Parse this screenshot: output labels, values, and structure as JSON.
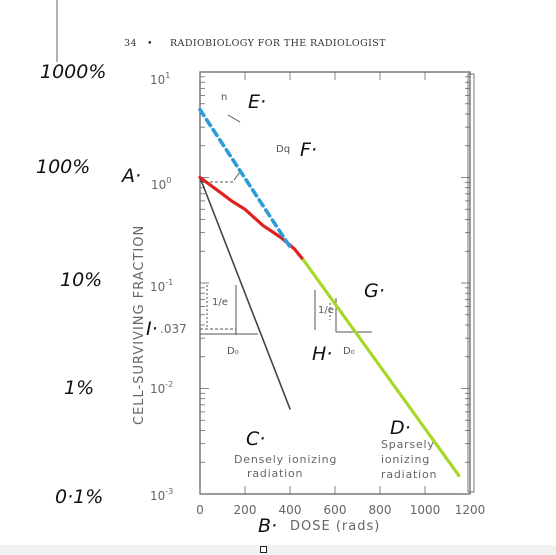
{
  "header": {
    "page_number": "34",
    "bullet": "•",
    "running_title": "RADIOBIOLOGY FOR THE RADIOLOGIST"
  },
  "chart_data": {
    "type": "line",
    "xlabel": "DOSE (rads)",
    "ylabel": "CELL-SURVIVING FRACTION",
    "xlim": [
      0,
      1200
    ],
    "ylim": [
      0.001,
      10
    ],
    "y_scale": "log",
    "x_ticks": [
      "0",
      "200",
      "400",
      "600",
      "800",
      "1000",
      "1200"
    ],
    "y_ticks": [
      {
        "base": "10",
        "exp": "1"
      },
      {
        "base": "10",
        "exp": "0"
      },
      {
        "base": "10",
        "exp": "-1"
      },
      {
        "base": "10",
        "exp": "-2"
      },
      {
        "base": "10",
        "exp": "-3"
      }
    ],
    "marked_y_value": ".037",
    "series": [
      {
        "points": [
          [
            0,
            1.0
          ],
          [
            400,
            0.0064
          ]
        ],
        "color": "#444444"
      },
      {
        "points": [
          [
            0,
            1.0
          ],
          [
            80,
            0.75
          ],
          [
            140,
            0.6
          ],
          [
            200,
            0.5
          ],
          [
            280,
            0.35
          ],
          [
            360,
            0.27
          ],
          [
            420,
            0.21
          ],
          [
            460,
            0.165
          ]
        ],
        "color": "#e02020"
      },
      {
        "points": [
          [
            460,
            0.165
          ],
          [
            1150,
            0.0015
          ]
        ],
        "color": "#a5d927"
      },
      {
        "points": [
          [
            0,
            4.4
          ],
          [
            400,
            0.22
          ]
        ],
        "color": "#2b9cd8"
      }
    ],
    "annotations": [
      {
        "text": "n"
      },
      {
        "text": "Dq"
      },
      {
        "text": "D₀",
        "side": "left"
      },
      {
        "text": "D₀",
        "side": "right"
      },
      {
        "text": "1/e",
        "side": "left"
      },
      {
        "text": "1/e",
        "side": "right"
      },
      {
        "lines": [
          "Densely ionizing",
          "radiation"
        ]
      },
      {
        "lines": [
          "Sparsely",
          "ionizing",
          "radiation"
        ]
      }
    ]
  },
  "handwritten": {
    "pct_1000": "1000%",
    "pct_100": "100%",
    "pct_10": "10%",
    "pct_1": "1%",
    "pct_01": "0·1%",
    "label_a": "A·",
    "label_b": "B·",
    "label_c": "C·",
    "label_d": "D·",
    "label_e": "E·",
    "label_f": "F·",
    "label_g": "G·",
    "label_h": "H·",
    "label_i": "I·"
  }
}
